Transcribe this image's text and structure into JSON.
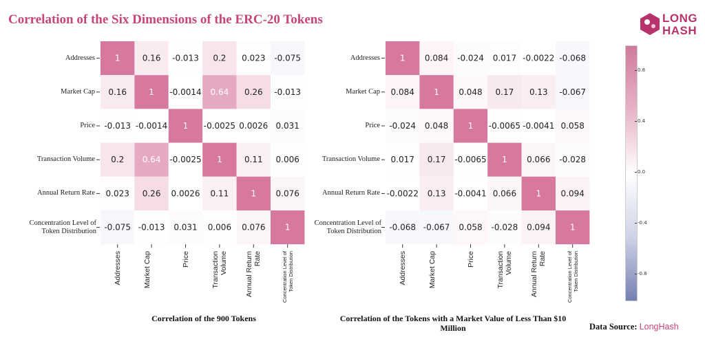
{
  "title": "Correlation of the Six Dimensions of the ERC-20 Tokens",
  "logo": {
    "line1": "LONG",
    "line2": "HASH",
    "icon": "longhash-hexagon-logo"
  },
  "source": {
    "label": "Data Source:",
    "brand": "LongHash"
  },
  "colors": {
    "positive": "#c8457a",
    "negative": "#5a6aa8",
    "neutral": "#ffffff",
    "title": "#c8457a"
  },
  "colorbar": {
    "ticks": [
      "0.8",
      "0.4",
      "0.0",
      "-0.4",
      "-0.8"
    ],
    "range": [
      -1,
      1
    ]
  },
  "chart_data": [
    {
      "type": "heatmap",
      "title": "Correlation of the 900 Tokens",
      "row_labels": [
        "Addresses",
        "Market Cap",
        "Price",
        "Transaction Volume",
        "Annual Return Rate",
        "Concentration Level of Token Distribution"
      ],
      "col_labels": [
        "Addresses",
        "Market Cap",
        "Price",
        "Transaction Volume",
        "Annual Return Rate",
        "Concentration Level of Token Distribution"
      ],
      "values": [
        [
          "1",
          "0.16",
          "-0.013",
          "0.2",
          "0.023",
          "-0.075"
        ],
        [
          "0.16",
          "1",
          "-0.0014",
          "0.64",
          "0.26",
          "-0.013"
        ],
        [
          "-0.013",
          "-0.0014",
          "1",
          "-0.0025",
          "0.0026",
          "0.031"
        ],
        [
          "0.2",
          "0.64",
          "-0.0025",
          "1",
          "0.11",
          "0.006"
        ],
        [
          "0.023",
          "0.26",
          "0.0026",
          "0.11",
          "1",
          "0.076"
        ],
        [
          "-0.075",
          "-0.013",
          "0.031",
          "0.006",
          "0.076",
          "1"
        ]
      ],
      "vrange": [
        -1,
        1
      ]
    },
    {
      "type": "heatmap",
      "title": "Correlation of the Tokens with a Market Value of Less Than $10 Million",
      "row_labels": [
        "Addresses",
        "Market Cap",
        "Price",
        "Transaction Volume",
        "Annual Return Rate",
        "Concentration Level of Token Distribution"
      ],
      "col_labels": [
        "Addresses",
        "Market Cap",
        "Price",
        "Transaction Volume",
        "Annual Return Rate",
        "Concentration Level of Token Distribution"
      ],
      "values": [
        [
          "1",
          "0.084",
          "-0.024",
          "0.017",
          "-0.0022",
          "-0.068"
        ],
        [
          "0.084",
          "1",
          "0.048",
          "0.17",
          "0.13",
          "-0.067"
        ],
        [
          "-0.024",
          "0.048",
          "1",
          "-0.0065",
          "-0.0041",
          "0.058"
        ],
        [
          "0.017",
          "0.17",
          "-0.0065",
          "1",
          "0.066",
          "-0.028"
        ],
        [
          "-0.0022",
          "0.13",
          "-0.0041",
          "0.066",
          "1",
          "0.094"
        ],
        [
          "-0.068",
          "-0.067",
          "0.058",
          "-0.028",
          "0.094",
          "1"
        ]
      ],
      "vrange": [
        -1,
        1
      ]
    }
  ]
}
